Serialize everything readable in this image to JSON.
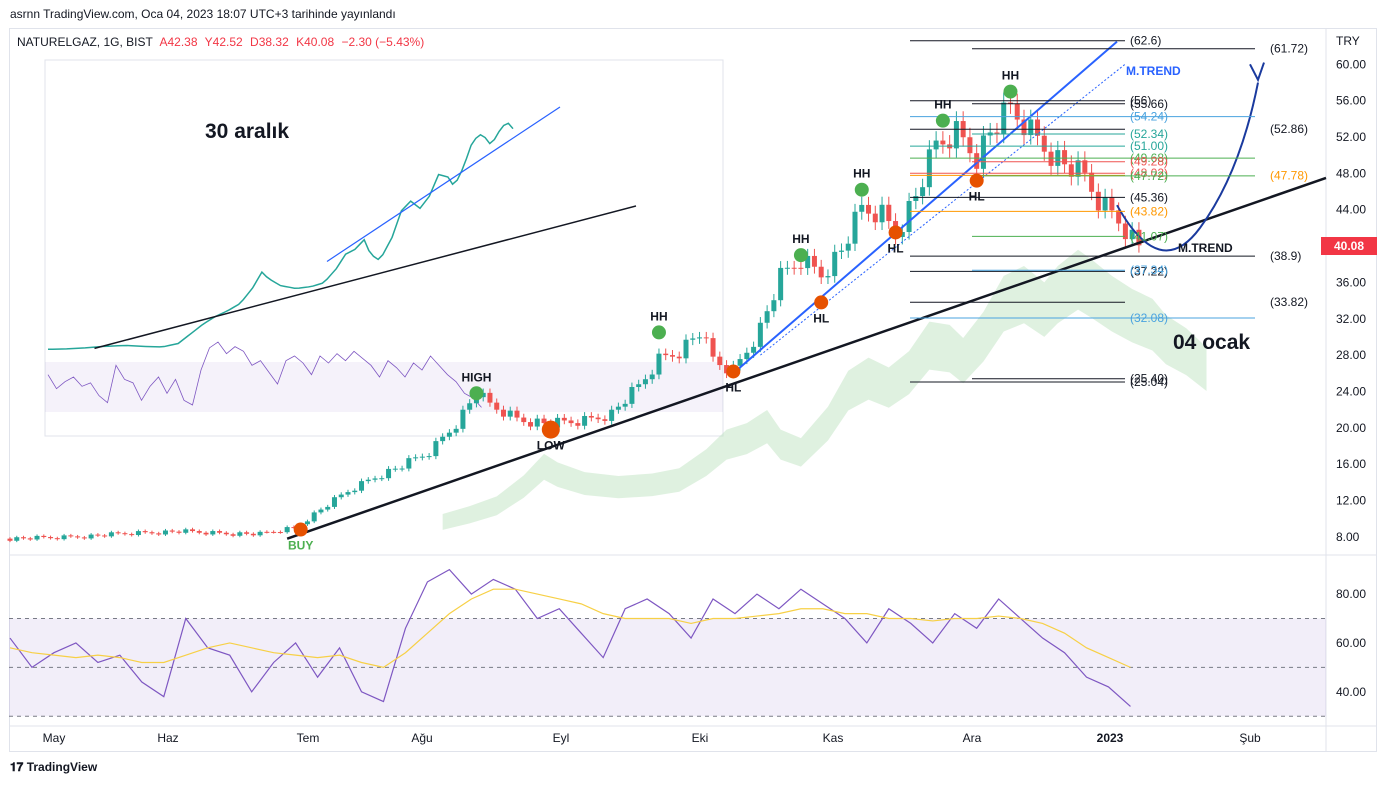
{
  "header": {
    "publish_line": "asrnn TradingView.com, Oca 04, 2023 18:07 UTC+3 tarihinde yayınlandı"
  },
  "legend": {
    "symbol": "NATURELGAZ, 1G, BIST",
    "o": "A42.38",
    "h": "Y42.52",
    "l": "D38.32",
    "c": "K40.08",
    "change": "−2.30 (−5.43%)"
  },
  "annotations": {
    "left_caption": "30 aralık",
    "right_caption": "04 ocak",
    "mtrend_top": "M.TREND",
    "mtrend_bottom": "M.TREND",
    "buy": "BUY",
    "high": "HIGH",
    "low": "LOW",
    "hh": "HH",
    "hl": "HL"
  },
  "price_tag": "40.08",
  "currency": "TRY",
  "footer": {
    "brand": "TradingView"
  },
  "colors": {
    "up": "#26a69a",
    "down": "#ef5350",
    "trend": "#2962ff",
    "rsi": "#7e57c2",
    "rsi_ma": "#f7d046",
    "marker_green": "#4caf50",
    "marker_orange": "#e65100",
    "price_tag": "#f23645",
    "cloud": "#b7dfba"
  },
  "chart_data": [
    {
      "type": "candlestick",
      "title": "NATURELGAZ, 1G, BIST",
      "ylabel": "TRY",
      "ylim": [
        6,
        64
      ],
      "y_ticks": [
        "60.00",
        "56.00",
        "52.00",
        "48.00",
        "44.00",
        "40.00",
        "36.00",
        "32.00",
        "28.00",
        "24.00",
        "20.00",
        "16.00",
        "12.00",
        "8.00"
      ],
      "x_ticks": [
        "May",
        "Haz",
        "Tem",
        "Ağu",
        "Eyl",
        "Eki",
        "Kas",
        "Ara",
        "2023",
        "Şub"
      ],
      "price_path": [
        [
          0,
          7.8
        ],
        [
          12,
          7.9
        ],
        [
          24,
          8.1
        ],
        [
          36,
          8.4
        ],
        [
          50,
          8.6
        ],
        [
          62,
          8.4
        ],
        [
          74,
          8.3
        ],
        [
          84,
          9.0
        ],
        [
          92,
          11.0
        ],
        [
          100,
          13.0
        ],
        [
          108,
          14.6
        ],
        [
          116,
          15.8
        ],
        [
          124,
          17.3
        ],
        [
          132,
          20.5
        ],
        [
          138,
          23.8
        ],
        [
          142,
          22.5
        ],
        [
          150,
          21.0
        ],
        [
          160,
          20.4
        ],
        [
          170,
          20.8
        ],
        [
          178,
          21.6
        ],
        [
          186,
          24.5
        ],
        [
          192,
          27.5
        ],
        [
          198,
          28.5
        ],
        [
          204,
          30.5
        ],
        [
          208,
          27.5
        ],
        [
          214,
          26.2
        ],
        [
          222,
          31.0
        ],
        [
          228,
          36.5
        ],
        [
          234,
          38.5
        ],
        [
          240,
          37.0
        ],
        [
          246,
          39.5
        ],
        [
          252,
          44.0
        ],
        [
          258,
          43.5
        ],
        [
          262,
          41.5
        ],
        [
          268,
          45.5
        ],
        [
          274,
          51.0
        ],
        [
          280,
          52.5
        ],
        [
          286,
          50.0
        ],
        [
          290,
          52.5
        ],
        [
          296,
          55.0
        ],
        [
          300,
          53.5
        ],
        [
          306,
          51.0
        ],
        [
          312,
          49.0
        ],
        [
          318,
          47.5
        ],
        [
          322,
          45.0
        ],
        [
          328,
          43.0
        ],
        [
          334,
          40.08
        ]
      ],
      "key_levels": [
        "61.72",
        "62.6",
        "56",
        "55.66",
        "54.24",
        "52.86",
        "52.34",
        "51.00",
        "49.68",
        "49.28",
        "48.02",
        "47.78",
        "47.72",
        "45.36",
        "43.82",
        "41.07",
        "38.9",
        "37.22",
        "37.34",
        "33.82",
        "32.08",
        "25.40",
        "25.04"
      ],
      "markers": [
        {
          "label": "BUY",
          "x": 86,
          "y": 8.8,
          "color": "orange"
        },
        {
          "label": "HIGH",
          "x": 138,
          "y": 23.8,
          "color": "green"
        },
        {
          "label": "LOW",
          "x": 160,
          "y": 19.8,
          "color": "orange"
        },
        {
          "label": "HH",
          "x": 192,
          "y": 30.5,
          "color": "green"
        },
        {
          "label": "HL",
          "x": 214,
          "y": 26.2,
          "color": "orange"
        },
        {
          "label": "HH",
          "x": 234,
          "y": 39.0,
          "color": "green"
        },
        {
          "label": "HL",
          "x": 240,
          "y": 33.8,
          "color": "orange"
        },
        {
          "label": "HH",
          "x": 252,
          "y": 46.2,
          "color": "green"
        },
        {
          "label": "HL",
          "x": 262,
          "y": 41.5,
          "color": "orange"
        },
        {
          "label": "HH",
          "x": 276,
          "y": 53.8,
          "color": "green"
        },
        {
          "label": "HL",
          "x": 286,
          "y": 47.2,
          "color": "orange"
        },
        {
          "label": "HH",
          "x": 296,
          "y": 57.0,
          "color": "green"
        }
      ]
    },
    {
      "type": "line",
      "title": "RSI",
      "ylim": [
        26,
        96
      ],
      "y_ticks": [
        "80.00",
        "60.00",
        "40.00"
      ],
      "band": [
        30,
        70
      ],
      "series": [
        {
          "values": [
            62,
            50,
            56,
            60,
            52,
            55,
            44,
            38,
            70,
            58,
            55,
            40,
            52,
            60,
            46,
            58,
            40,
            36,
            66,
            85,
            90,
            80,
            86,
            82,
            70,
            74,
            64,
            54,
            74,
            78,
            72,
            62,
            78,
            72,
            80,
            74,
            82,
            76,
            70,
            60,
            74,
            68,
            60,
            72,
            66,
            78,
            70,
            62,
            56,
            46,
            42,
            34
          ]
        },
        {
          "values": [
            58,
            56,
            55,
            54,
            55,
            54,
            52,
            52,
            55,
            58,
            60,
            58,
            56,
            55,
            54,
            55,
            52,
            50,
            56,
            64,
            72,
            78,
            82,
            82,
            80,
            78,
            76,
            72,
            70,
            70,
            70,
            68,
            70,
            70,
            71,
            72,
            74,
            74,
            72,
            72,
            70,
            70,
            69,
            70,
            70,
            71,
            70,
            68,
            64,
            58,
            54,
            50
          ]
        }
      ]
    }
  ]
}
